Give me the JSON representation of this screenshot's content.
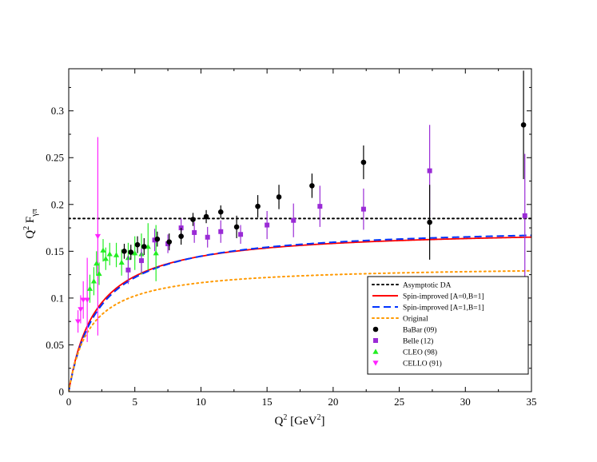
{
  "chart_data": {
    "type": "scatter",
    "title": "",
    "xlabel": {
      "base": "Q",
      "sup": "2",
      "unit_open": " [GeV",
      "unit_sup": "2",
      "unit_close": "]"
    },
    "ylabel": {
      "base": "Q",
      "sup": "2",
      "main": " F",
      "sub": "γπ"
    },
    "xlim": [
      0,
      35
    ],
    "ylim": [
      0,
      0.345
    ],
    "x_ticks": [
      0,
      5,
      10,
      15,
      20,
      25,
      30,
      35
    ],
    "y_ticks": [
      0,
      0.05,
      0.1,
      0.15,
      0.2,
      0.25,
      0.3
    ],
    "x_tick_labels": [
      "0",
      "5",
      "10",
      "15",
      "20",
      "25",
      "30",
      "35"
    ],
    "y_tick_labels": [
      "0",
      "0.05",
      "0.1",
      "0.15",
      "0.2",
      "0.25",
      "0.3"
    ],
    "legend_position": "bottom-right",
    "curves": [
      {
        "name": "Asymptotic DA",
        "style": "dotted",
        "color": "#000000",
        "kind": "const",
        "value": 0.185
      },
      {
        "name": "Spin-improved [A=0,B=1]",
        "style": "solid",
        "color": "#ff0000",
        "kind": "sat",
        "amp": 0.175,
        "tau": 2.1
      },
      {
        "name": "Spin-improved [A=1,B=1]",
        "style": "dashed",
        "color": "#0033ff",
        "kind": "sat",
        "amp": 0.178,
        "tau": 2.3
      },
      {
        "name": "Original",
        "style": "dotted",
        "color": "#ff9900",
        "kind": "sat",
        "amp": 0.135,
        "tau": 1.6
      }
    ],
    "series": [
      {
        "name": "BaBar (09)",
        "marker": "circle",
        "color": "#000000",
        "points": [
          [
            4.2,
            0.15,
            0.008
          ],
          [
            4.7,
            0.149,
            0.008
          ],
          [
            5.2,
            0.157,
            0.009
          ],
          [
            5.7,
            0.155,
            0.009
          ],
          [
            6.7,
            0.163,
            0.008
          ],
          [
            7.6,
            0.16,
            0.009
          ],
          [
            8.5,
            0.166,
            0.009
          ],
          [
            9.4,
            0.184,
            0.007
          ],
          [
            10.4,
            0.187,
            0.007
          ],
          [
            11.5,
            0.192,
            0.007
          ],
          [
            12.7,
            0.176,
            0.012
          ],
          [
            14.3,
            0.198,
            0.012
          ],
          [
            15.9,
            0.208,
            0.013
          ],
          [
            18.4,
            0.22,
            0.013
          ],
          [
            22.3,
            0.245,
            0.018
          ],
          [
            27.3,
            0.181,
            0.04
          ],
          [
            34.4,
            0.285,
            0.058
          ]
        ]
      },
      {
        "name": "Belle (12)",
        "marker": "square",
        "color": "#9a2bd6",
        "points": [
          [
            4.5,
            0.13,
            0.015
          ],
          [
            5.5,
            0.14,
            0.013
          ],
          [
            6.5,
            0.162,
            0.012
          ],
          [
            7.5,
            0.158,
            0.01
          ],
          [
            8.5,
            0.175,
            0.01
          ],
          [
            9.5,
            0.17,
            0.011
          ],
          [
            10.5,
            0.165,
            0.011
          ],
          [
            11.5,
            0.171,
            0.012
          ],
          [
            13.0,
            0.168,
            0.01
          ],
          [
            15.0,
            0.178,
            0.015
          ],
          [
            17.0,
            0.183,
            0.018
          ],
          [
            19.0,
            0.198,
            0.022
          ],
          [
            22.3,
            0.195,
            0.022
          ],
          [
            27.3,
            0.236,
            0.049
          ],
          [
            34.5,
            0.188,
            0.066
          ]
        ]
      },
      {
        "name": "CLEO (98)",
        "marker": "triangle-up",
        "color": "#22ee22",
        "points": [
          [
            1.6,
            0.11,
            0.015
          ],
          [
            1.9,
            0.118,
            0.015
          ],
          [
            2.1,
            0.137,
            0.013
          ],
          [
            2.3,
            0.126,
            0.012
          ],
          [
            2.6,
            0.151,
            0.012
          ],
          [
            2.8,
            0.142,
            0.012
          ],
          [
            3.1,
            0.147,
            0.012
          ],
          [
            3.6,
            0.146,
            0.013
          ],
          [
            4.0,
            0.138,
            0.014
          ],
          [
            4.5,
            0.143,
            0.016
          ],
          [
            5.0,
            0.148,
            0.018
          ],
          [
            5.5,
            0.147,
            0.022
          ],
          [
            6.0,
            0.155,
            0.025
          ],
          [
            6.6,
            0.148,
            0.03
          ]
        ]
      },
      {
        "name": "CELLO (91)",
        "marker": "triangle-down",
        "color": "#ff22ff",
        "points": [
          [
            0.7,
            0.075,
            0.012
          ],
          [
            0.9,
            0.088,
            0.015
          ],
          [
            1.1,
            0.098,
            0.02
          ],
          [
            1.4,
            0.098,
            0.045
          ],
          [
            2.2,
            0.166,
            0.106
          ]
        ]
      }
    ]
  }
}
